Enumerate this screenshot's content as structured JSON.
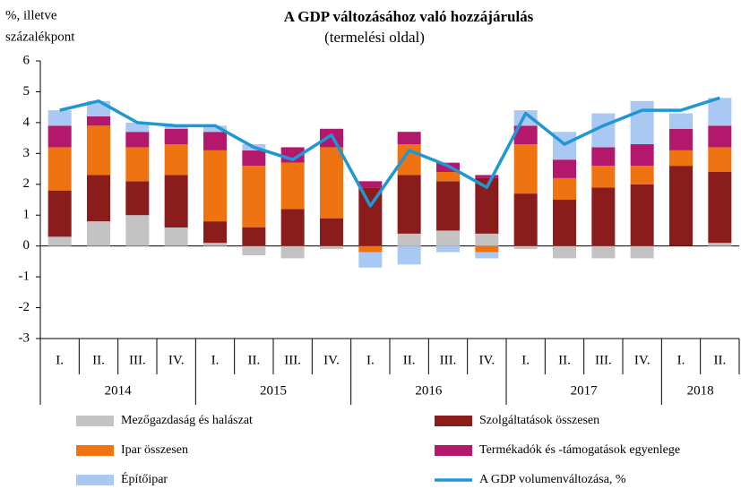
{
  "chart_data": {
    "type": "bar",
    "stacked": true,
    "title": "A GDP változásához való hozzájárulás",
    "subtitle": "(termelési oldal)",
    "y_axis_label": [
      "%, illetve",
      "százalékpont"
    ],
    "categories": [
      "I.",
      "II.",
      "III.",
      "IV.",
      "I.",
      "II.",
      "III.",
      "IV.",
      "I.",
      "II.",
      "III.",
      "IV.",
      "I.",
      "II.",
      "III.",
      "IV.",
      "I.",
      "II."
    ],
    "years": [
      "2014",
      "2015",
      "2016",
      "2017",
      "2018"
    ],
    "ylim": [
      -3,
      6
    ],
    "yticks": [
      -3,
      -2,
      -1,
      0,
      1,
      2,
      3,
      4,
      5,
      6
    ],
    "series": [
      {
        "name": "Mezőgazdaság és halászat",
        "color": "#c3c3c3",
        "values": [
          0.3,
          0.8,
          1.0,
          0.6,
          0.1,
          -0.3,
          -0.4,
          -0.1,
          0,
          0.4,
          0.5,
          0.4,
          -0.1,
          -0.4,
          -0.4,
          -0.4,
          0,
          0.1
        ]
      },
      {
        "name": "Szolgáltatások összesen",
        "color": "#8b1c1c",
        "values": [
          1.5,
          1.5,
          1.1,
          1.7,
          0.7,
          0.6,
          1.2,
          0.9,
          1.9,
          1.9,
          1.6,
          1.8,
          1.7,
          1.5,
          1.9,
          2.0,
          2.6,
          2.3
        ]
      },
      {
        "name": "Ipar összesen",
        "color": "#f07312",
        "values": [
          1.4,
          1.6,
          1.1,
          1.0,
          2.3,
          2.0,
          1.5,
          2.3,
          -0.2,
          1.0,
          0.3,
          -0.2,
          1.6,
          0.7,
          0.7,
          0.6,
          0.5,
          0.8
        ]
      },
      {
        "name": "Termékadók és -támogatások egyenlege",
        "color": "#b3186c",
        "values": [
          0.7,
          0.3,
          0.5,
          0.5,
          0.6,
          0.5,
          0.5,
          0.6,
          0.2,
          0.4,
          0.3,
          0.1,
          0.6,
          0.6,
          0.6,
          0.7,
          0.7,
          0.7
        ]
      },
      {
        "name": "Építőipar",
        "color": "#a9c9f2",
        "values": [
          0.5,
          0.5,
          0.3,
          0.1,
          0.2,
          0.2,
          0,
          0,
          -0.5,
          -0.6,
          -0.2,
          -0.2,
          0.5,
          0.9,
          1.1,
          1.4,
          0.5,
          0.9
        ]
      },
      {
        "name": "A GDP volumenváltozása, %",
        "type": "line",
        "color": "#1f97d4",
        "values": [
          4.4,
          4.7,
          4.0,
          3.9,
          3.9,
          3.2,
          2.8,
          3.6,
          1.3,
          3.1,
          2.6,
          1.9,
          4.3,
          3.3,
          3.9,
          4.4,
          4.4,
          4.8
        ]
      }
    ]
  }
}
